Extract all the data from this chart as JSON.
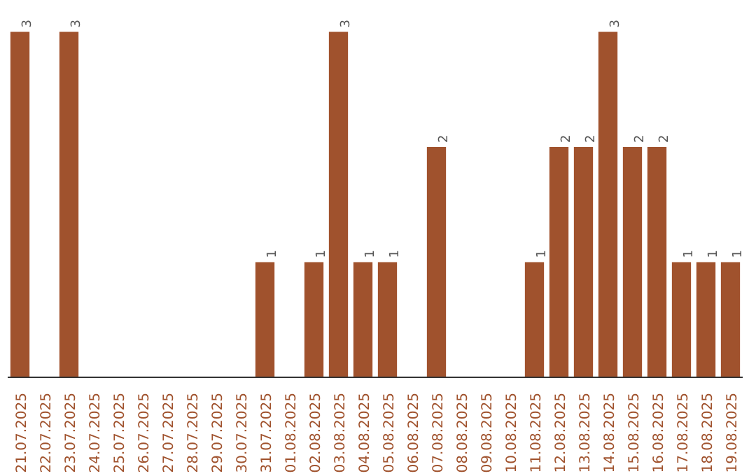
{
  "chart_data": {
    "type": "bar",
    "categories": [
      "21.07.2025",
      "22.07.2025",
      "23.07.2025",
      "24.07.2025",
      "25.07.2025",
      "26.07.2025",
      "27.07.2025",
      "28.07.2025",
      "29.07.2025",
      "30.07.2025",
      "31.07.2025",
      "01.08.2025",
      "02.08.2025",
      "03.08.2025",
      "04.08.2025",
      "05.08.2025",
      "06.08.2025",
      "07.08.2025",
      "08.08.2025",
      "09.08.2025",
      "10.08.2025",
      "11.08.2025",
      "12.08.2025",
      "13.08.2025",
      "14.08.2025",
      "15.08.2025",
      "16.08.2025",
      "17.08.2025",
      "18.08.2025",
      "19.08.2025"
    ],
    "values": [
      3,
      0,
      3,
      0,
      0,
      0,
      0,
      0,
      0,
      0,
      1,
      0,
      1,
      3,
      1,
      1,
      0,
      2,
      0,
      0,
      0,
      1,
      2,
      2,
      3,
      2,
      2,
      1,
      1,
      1
    ],
    "value_labels": [
      "3",
      null,
      "3",
      null,
      null,
      null,
      null,
      null,
      null,
      null,
      "1",
      null,
      "1",
      "3",
      "1",
      "1",
      null,
      "2",
      null,
      null,
      null,
      "1",
      "2",
      "2",
      "3",
      "2",
      "2",
      "1",
      "1",
      "1"
    ],
    "color": "#a0522d",
    "grid": false
  }
}
